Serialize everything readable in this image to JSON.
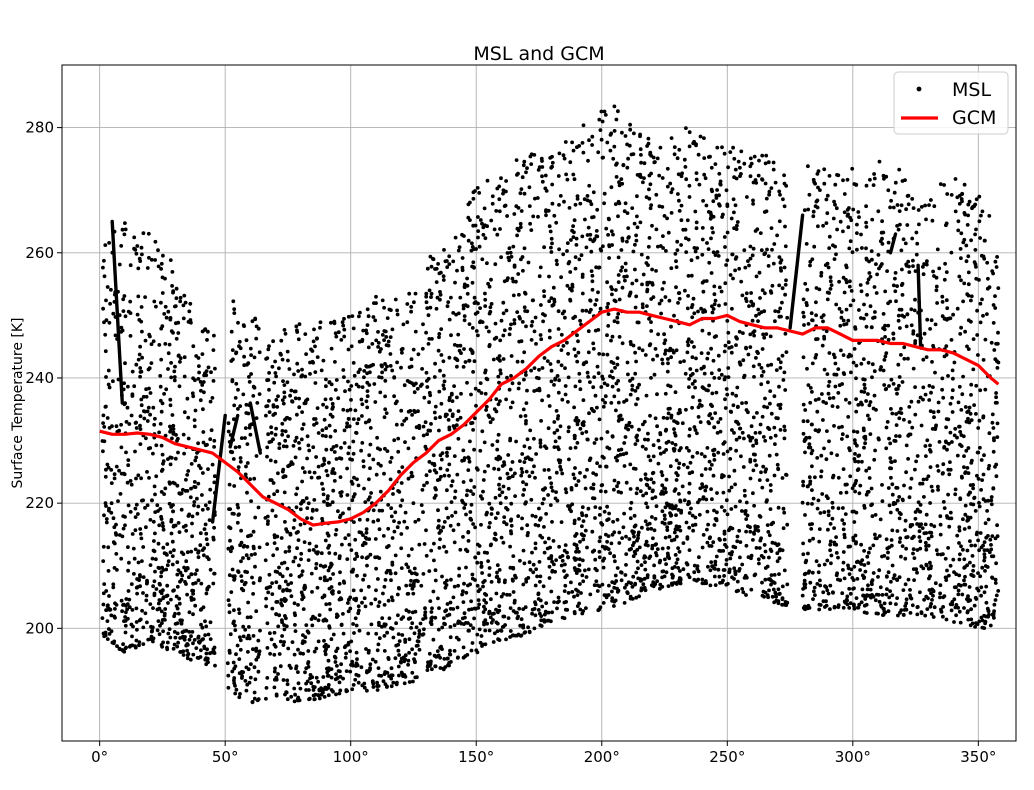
{
  "chart_data": {
    "type": "scatter",
    "title": "MSL and GCM",
    "xlabel": "",
    "ylabel": "Surface Temperature [K]",
    "xlim": [
      -15,
      365
    ],
    "ylim": [
      182,
      290
    ],
    "x_ticks": [
      0,
      50,
      100,
      150,
      200,
      250,
      300,
      350
    ],
    "x_tick_labels": [
      "0°",
      "50°",
      "100°",
      "150°",
      "200°",
      "250°",
      "300°",
      "350°"
    ],
    "y_ticks": [
      200,
      220,
      240,
      260,
      280
    ],
    "y_tick_labels": [
      "200",
      "220",
      "240",
      "260",
      "280"
    ],
    "grid": true,
    "legend_position": "top-right",
    "series": [
      {
        "name": "MSL",
        "kind": "scatter",
        "color": "#000000",
        "envelope": {
          "x": [
            1,
            10,
            20,
            30,
            40,
            46,
            52,
            58,
            64,
            70,
            80,
            90,
            100,
            110,
            120,
            130,
            140,
            150,
            160,
            170,
            180,
            190,
            200,
            210,
            220,
            230,
            240,
            250,
            260,
            270,
            276,
            280,
            290,
            300,
            310,
            320,
            330,
            340,
            350,
            358
          ],
          "y_min": [
            199,
            196,
            198,
            196,
            194,
            194,
            190,
            188,
            188,
            189,
            188,
            189,
            190,
            190,
            191,
            192,
            194,
            196,
            198,
            199,
            201,
            202,
            203,
            204,
            206,
            207,
            207,
            206,
            205,
            204,
            203,
            203,
            203,
            203,
            202,
            202,
            202,
            201,
            200,
            200
          ],
          "y_max": [
            262,
            265,
            264,
            258,
            250,
            248,
            253,
            250,
            252,
            247,
            249,
            249,
            250,
            253,
            253,
            259,
            262,
            271,
            273,
            276,
            277,
            279,
            285,
            282,
            278,
            281,
            279,
            278,
            277,
            275,
            273,
            274,
            274,
            274,
            275,
            273,
            270,
            272,
            270,
            263
          ]
        },
        "gaps": [
          [
            46,
            51
          ],
          [
            64,
            66
          ],
          [
            274,
            280
          ]
        ],
        "segments": [
          {
            "x": [
              5,
              9
            ],
            "y": [
              265,
              236
            ]
          },
          {
            "x": [
              45,
              50
            ],
            "y": [
              217,
              234
            ]
          },
          {
            "x": [
              52,
              55
            ],
            "y": [
              229,
              234
            ]
          },
          {
            "x": [
              60,
              64
            ],
            "y": [
              236,
              228
            ]
          },
          {
            "x": [
              275,
              280
            ],
            "y": [
              248,
              266
            ]
          },
          {
            "x": [
              315,
              317
            ],
            "y": [
              260,
              263
            ]
          },
          {
            "x": [
              326,
              327
            ],
            "y": [
              258,
              245
            ]
          }
        ]
      },
      {
        "name": "GCM",
        "kind": "line",
        "color": "#ff0000",
        "x": [
          0,
          5,
          10,
          15,
          20,
          25,
          30,
          35,
          40,
          45,
          50,
          55,
          60,
          65,
          70,
          75,
          80,
          85,
          90,
          95,
          100,
          105,
          110,
          115,
          120,
          125,
          130,
          135,
          140,
          145,
          150,
          155,
          160,
          165,
          170,
          175,
          180,
          185,
          190,
          195,
          200,
          205,
          210,
          215,
          220,
          225,
          230,
          235,
          240,
          245,
          250,
          255,
          260,
          265,
          270,
          275,
          280,
          285,
          290,
          295,
          300,
          305,
          310,
          315,
          320,
          325,
          330,
          335,
          340,
          345,
          350,
          355,
          358
        ],
        "y": [
          231.5,
          231,
          231,
          231.2,
          231,
          230.5,
          229.5,
          229,
          228.5,
          228,
          226.5,
          225,
          223,
          221,
          220,
          219,
          217.5,
          216.5,
          216.8,
          217,
          217.5,
          218.5,
          220,
          222,
          224.5,
          226.5,
          228,
          230,
          231,
          232.5,
          234.5,
          236.5,
          239,
          240,
          241.5,
          243.5,
          245,
          246,
          247.5,
          249,
          250.5,
          251,
          250.5,
          250.5,
          250,
          249.5,
          249,
          248.5,
          249.5,
          249.5,
          250,
          249,
          248.5,
          248,
          248,
          247.5,
          247,
          248,
          248,
          247,
          246,
          246,
          246,
          245.5,
          245.5,
          245,
          244.5,
          244.5,
          244,
          243,
          242,
          240,
          239
        ]
      }
    ]
  }
}
